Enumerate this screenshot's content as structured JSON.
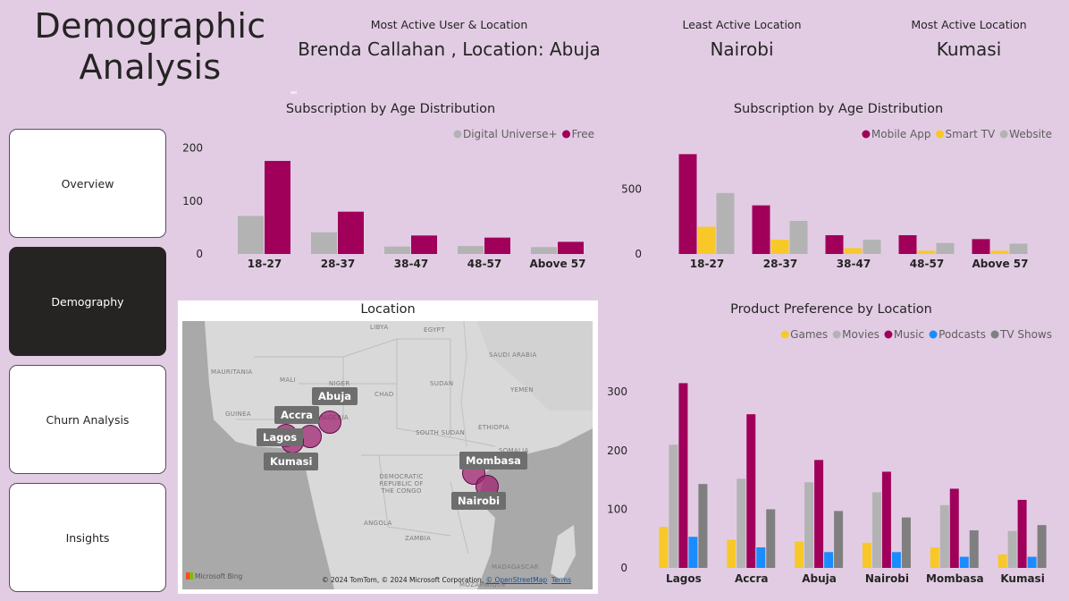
{
  "header": {
    "title_line1": "Demographic",
    "title_line2": "Analysis"
  },
  "kpis": [
    {
      "label": "Most Active User & Location",
      "value": "Brenda Callahan , Location: Abuja"
    },
    {
      "label": "Least Active Location",
      "value": "Nairobi"
    },
    {
      "label": "Most Active Location",
      "value": "Kumasi"
    }
  ],
  "nav": [
    {
      "label": "Overview",
      "active": false
    },
    {
      "label": "Demography",
      "active": true
    },
    {
      "label": "Churn Analysis",
      "active": false
    },
    {
      "label": "Insights",
      "active": false
    }
  ],
  "colors": {
    "background": "#e2cce4",
    "nav_active": "#252423",
    "magenta": "#a0005a",
    "gray": "#b3b3b3",
    "yellow": "#f8c828",
    "blue": "#1a8cff",
    "dark_gray": "#7f7f7f"
  },
  "map": {
    "title": "Location",
    "attribution": "© 2024 TomTom, © 2024 Microsoft Corporation, ",
    "attribution_osm": "© OpenStreetMap",
    "attribution_terms": "Terms",
    "provider": "Microsoft Bing",
    "countries": [
      "LIBYA",
      "EGYPT",
      "SAUDI ARABIA",
      "MAURITANIA",
      "MALI",
      "NIGER",
      "CHAD",
      "SUDAN",
      "YEMEN",
      "GUINEA",
      "NIGERIA",
      "SOUTH SUDAN",
      "ETHIOPIA",
      "SOMALIA",
      "DEMOCRATIC REPUBLIC OF THE CONGO",
      "ANGOLA",
      "ZAMBIA",
      "MADAGASCAR",
      "MOZAMBIQUE"
    ],
    "locations": [
      "Abuja",
      "Accra",
      "Lagos",
      "Kumasi",
      "Mombasa",
      "Nairobi"
    ]
  },
  "chart_data": [
    {
      "type": "bar",
      "title": "Subscription by Age Distribution",
      "categories": [
        "18-27",
        "28-37",
        "38-47",
        "48-57",
        "Above 57"
      ],
      "series": [
        {
          "name": "Digital Universe+",
          "color": "#b3b3b3",
          "values": [
            72,
            41,
            14,
            15,
            13
          ]
        },
        {
          "name": "Free",
          "color": "#a0005a",
          "values": [
            176,
            80,
            35,
            31,
            23
          ]
        }
      ],
      "yticks": [
        0,
        100,
        200
      ],
      "ylim": [
        0,
        230
      ],
      "legend": "top-right",
      "grid": false
    },
    {
      "type": "bar",
      "title": "Subscription by Age Distribution",
      "categories": [
        "18-27",
        "28-37",
        "38-47",
        "48-57",
        "Above 57"
      ],
      "series": [
        {
          "name": "Mobile App",
          "color": "#a0005a",
          "values": [
            770,
            375,
            145,
            145,
            115
          ]
        },
        {
          "name": "Smart TV",
          "color": "#f8c828",
          "values": [
            210,
            110,
            45,
            25,
            25
          ]
        },
        {
          "name": "Website",
          "color": "#b3b3b3",
          "values": [
            470,
            255,
            110,
            85,
            80
          ]
        }
      ],
      "yticks": [
        0,
        500
      ],
      "ylim": [
        0,
        800
      ],
      "legend": "top-right",
      "grid": false
    },
    {
      "type": "bar",
      "title": "Product Preference by Location",
      "categories": [
        "Lagos",
        "Accra",
        "Abuja",
        "Nairobi",
        "Mombasa",
        "Kumasi"
      ],
      "series": [
        {
          "name": "Games",
          "color": "#f8c828",
          "values": [
            70,
            48,
            45,
            43,
            35,
            23
          ]
        },
        {
          "name": "Movies",
          "color": "#b3b3b3",
          "values": [
            210,
            152,
            146,
            129,
            107,
            63
          ]
        },
        {
          "name": "Music",
          "color": "#a0005a",
          "values": [
            315,
            262,
            184,
            164,
            135,
            116
          ]
        },
        {
          "name": "Podcasts",
          "color": "#1a8cff",
          "values": [
            53,
            35,
            27,
            27,
            19,
            19
          ]
        },
        {
          "name": "TV Shows",
          "color": "#7f7f7f",
          "values": [
            143,
            100,
            97,
            86,
            64,
            73
          ]
        }
      ],
      "yticks": [
        0,
        100,
        200,
        300
      ],
      "ylim": [
        0,
        340
      ],
      "legend": "top-right",
      "grid": false
    }
  ]
}
